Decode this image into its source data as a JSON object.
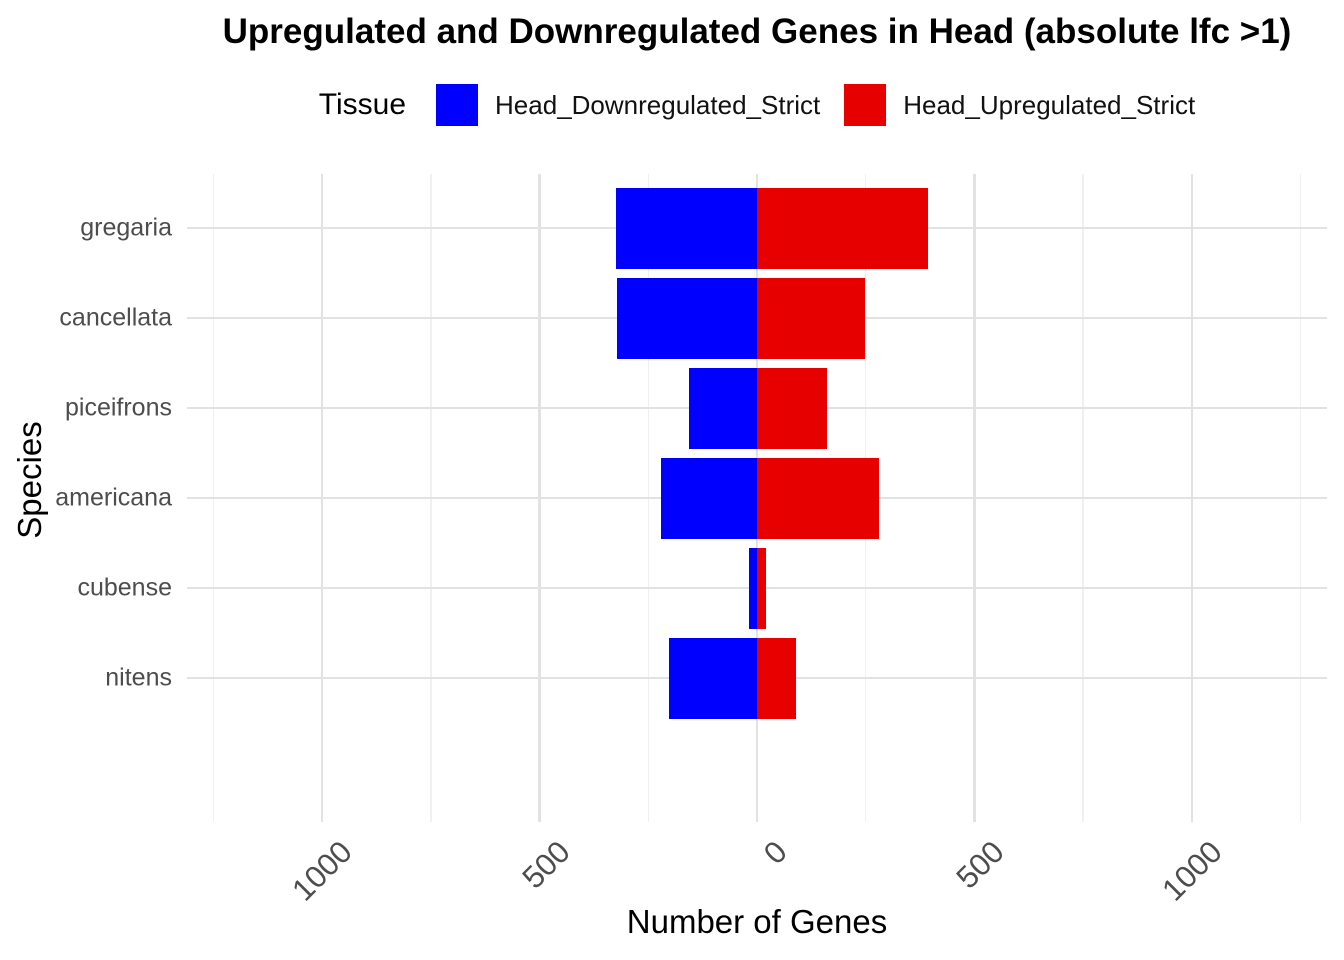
{
  "title": "Upregulated and Downregulated Genes in Head (absolute lfc >1)",
  "legend": {
    "title": "Tissue",
    "items": [
      {
        "label": "Head_Downregulated_Strict",
        "color": "#0000FF"
      },
      {
        "label": "Head_Upregulated_Strict",
        "color": "#E60000"
      }
    ]
  },
  "chart_data": {
    "type": "bar",
    "orientation": "horizontal-diverging",
    "title": "Upregulated and Downregulated Genes in Head (absolute lfc >1)",
    "xlabel": "Number of Genes",
    "ylabel": "Species",
    "categories": [
      "gregaria",
      "cancellata",
      "piceifrons",
      "americana",
      "cubense",
      "nitens"
    ],
    "series": [
      {
        "name": "Head_Downregulated_Strict",
        "direction": "negative",
        "color": "#0000FF",
        "values": [
          325,
          323,
          156,
          220,
          18,
          202
        ]
      },
      {
        "name": "Head_Upregulated_Strict",
        "direction": "positive",
        "color": "#E60000",
        "values": [
          394,
          248,
          160,
          281,
          21,
          90
        ]
      }
    ],
    "x_ticks": [
      {
        "value": -1000,
        "label": "1000"
      },
      {
        "value": -500,
        "label": "500"
      },
      {
        "value": 0,
        "label": "0"
      },
      {
        "value": 500,
        "label": "500"
      },
      {
        "value": 1000,
        "label": "1000"
      }
    ],
    "x_minor_ticks": [
      -1250,
      -750,
      -250,
      250,
      750,
      1250
    ],
    "xlim": [
      -1311,
      1311
    ],
    "grid": true,
    "legend_position": "top",
    "colors": {
      "grid_major": "#E2E2E2",
      "grid_minor": "#F0F0F0",
      "axis_text": "#4D4D4D",
      "background": "#FFFFFF"
    }
  }
}
